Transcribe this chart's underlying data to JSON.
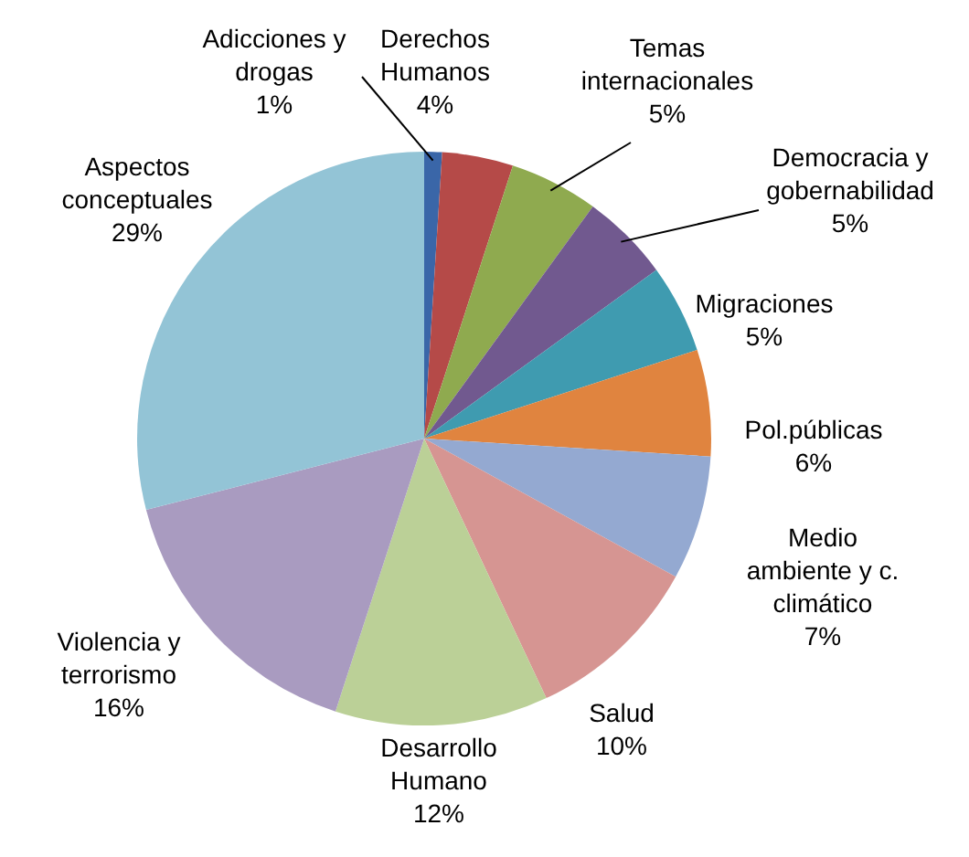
{
  "chart_data": {
    "type": "pie",
    "categories": [
      "Adicciones y drogas",
      "Derechos Humanos",
      "Temas internacionales",
      "Democracia y gobernabilidad",
      "Migraciones",
      "Pol.públicas",
      "Medio ambiente y c. climático",
      "Salud",
      "Desarrollo Humano",
      "Violencia y terrorismo",
      "Aspectos conceptuales"
    ],
    "values": [
      1,
      4,
      5,
      5,
      5,
      6,
      7,
      10,
      12,
      16,
      29
    ],
    "colors": [
      "#3a66a8",
      "#b54a48",
      "#8faa4f",
      "#71598f",
      "#3f9bb0",
      "#e0843f",
      "#94a9d1",
      "#d69592",
      "#bbd097",
      "#a99bc0",
      "#93c4d6"
    ],
    "value_labels": [
      "1%",
      "4%",
      "5%",
      "5%",
      "5%",
      "6%",
      "7%",
      "10%",
      "12%",
      "16%",
      "29%"
    ]
  }
}
